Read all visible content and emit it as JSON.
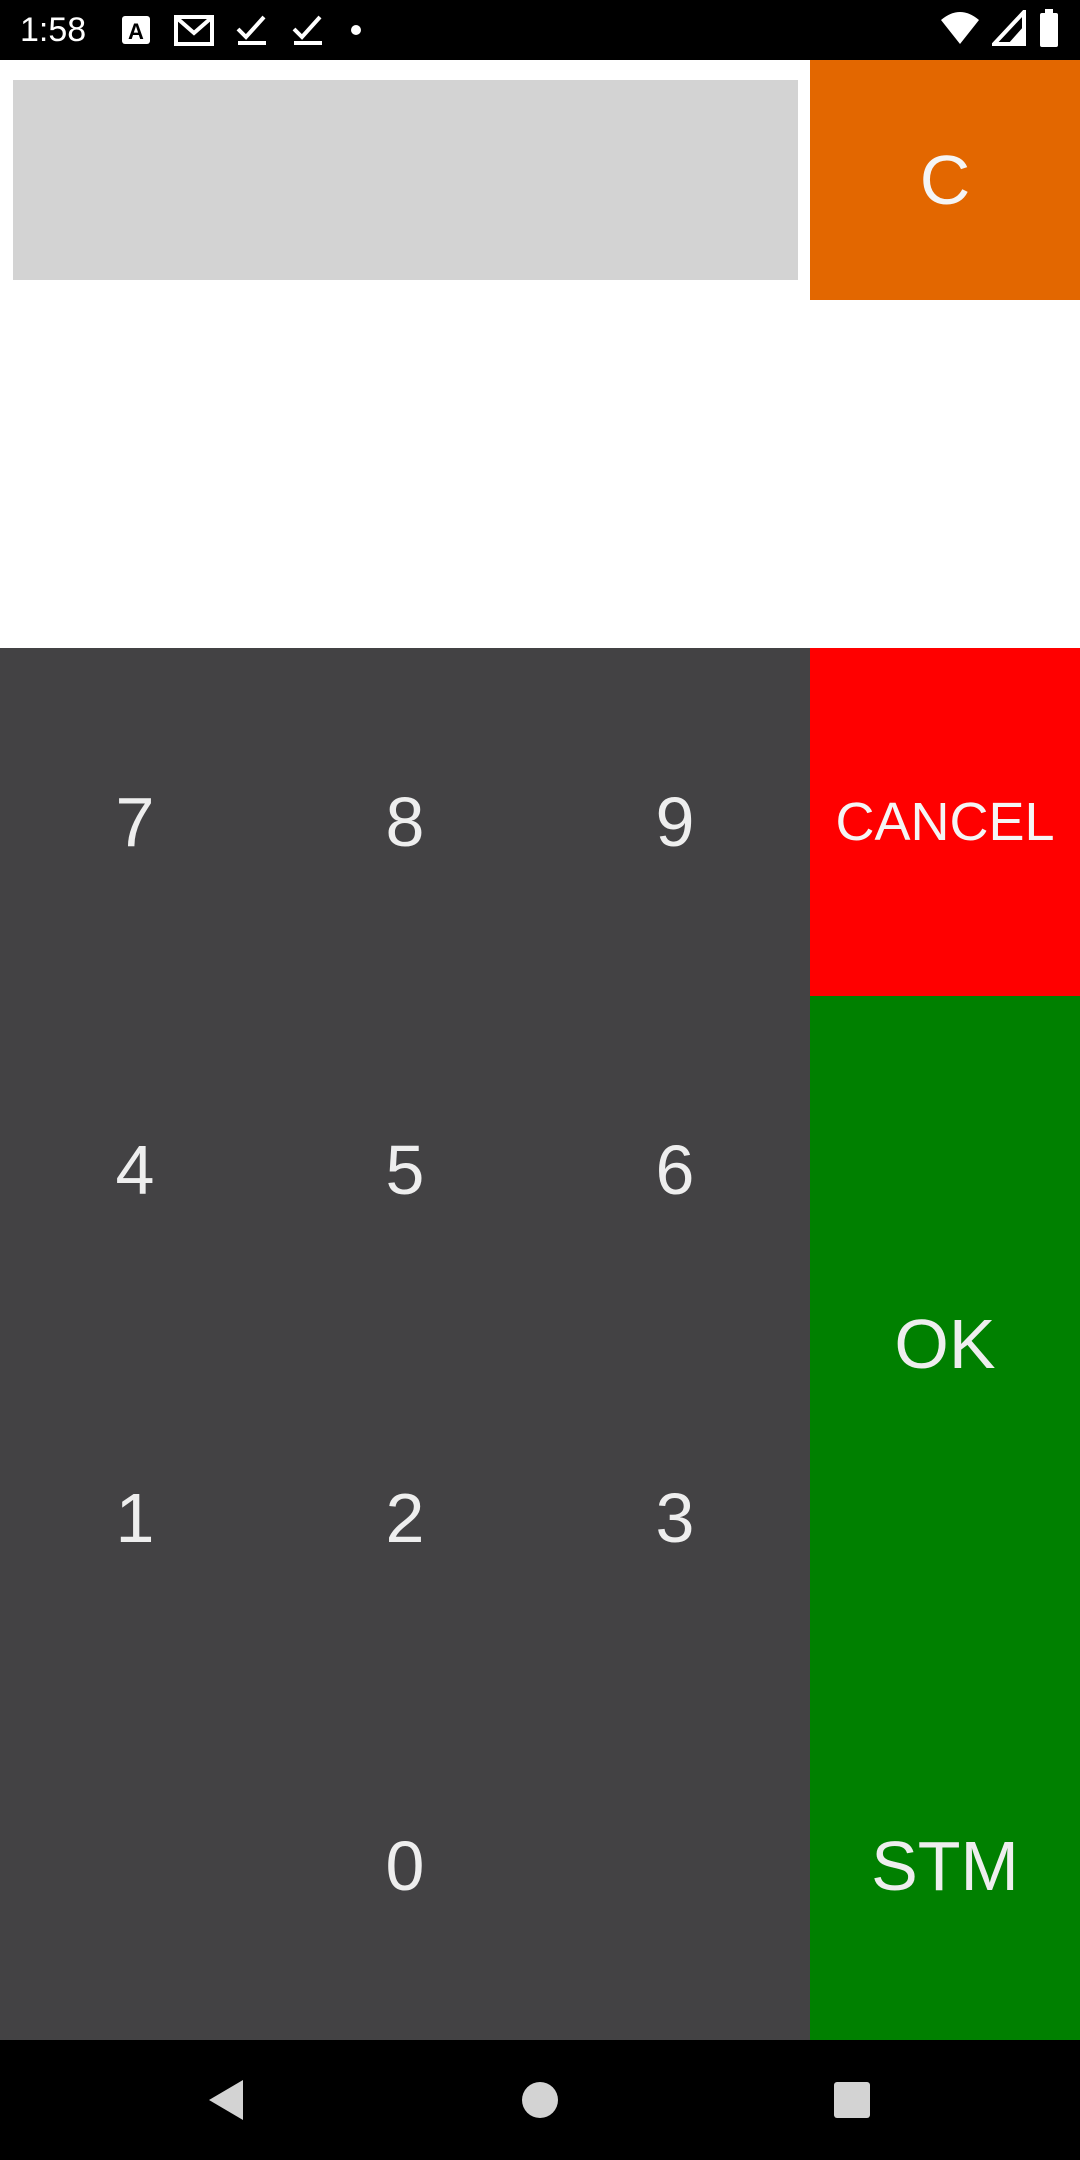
{
  "status_bar": {
    "time": "1:58",
    "notification_icons": [
      "text-format-icon",
      "gmail-icon",
      "check-icon",
      "check-icon",
      "dot-icon"
    ],
    "system_icons": [
      "wifi-icon",
      "cell-signal-icon",
      "battery-icon"
    ]
  },
  "top": {
    "display_value": "",
    "clear_label": "C"
  },
  "keypad": {
    "keys": [
      "7",
      "8",
      "9",
      "4",
      "5",
      "6",
      "1",
      "2",
      "3",
      "0"
    ]
  },
  "actions": {
    "cancel_label": "CANCEL",
    "ok_label": "OK",
    "stm_label": "STM"
  },
  "colors": {
    "clear": "#e36700",
    "cancel": "#ff0000",
    "ok": "#008000",
    "keypad_bg": "#434244",
    "display_bg": "#d3d3d3"
  },
  "nav_bar": {
    "buttons": [
      "back-icon",
      "home-icon",
      "recents-icon"
    ]
  }
}
